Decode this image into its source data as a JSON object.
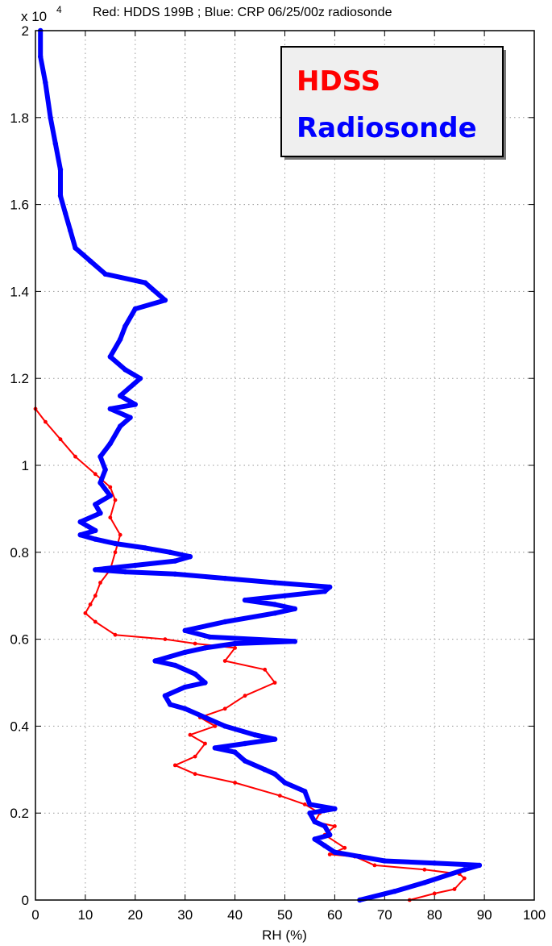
{
  "chart_data": {
    "type": "line",
    "title": "Red: HDDS 199B ; Blue: CRP 06/25/00z radiosonde",
    "xlabel": "RH (%)",
    "ylabel": "",
    "xlim": [
      0,
      100
    ],
    "ylim": [
      0,
      20000
    ],
    "y_exponent_label": "x 10",
    "y_exponent_power": "4",
    "x_ticks": [
      0,
      10,
      20,
      30,
      40,
      50,
      60,
      70,
      80,
      90,
      100
    ],
    "x_tick_labels": [
      "0",
      "10",
      "20",
      "30",
      "40",
      "50",
      "60",
      "70",
      "80",
      "90",
      "100"
    ],
    "y_ticks": [
      0,
      2000,
      4000,
      6000,
      8000,
      10000,
      12000,
      14000,
      16000,
      18000,
      20000
    ],
    "y_tick_labels": [
      "0",
      "0.2",
      "0.4",
      "0.6",
      "0.8",
      "1",
      "1.2",
      "1.4",
      "1.6",
      "1.8",
      "2"
    ],
    "grid": true,
    "legend": {
      "placement": "top-right",
      "entries": [
        "HDSS",
        "Radiosonde"
      ]
    },
    "colors": {
      "hdss": "#ff0000",
      "radiosonde": "#0000ff"
    },
    "series": [
      {
        "name": "HDSS",
        "color": "#ff0000",
        "points": [
          [
            75,
            0
          ],
          [
            80,
            150
          ],
          [
            84,
            250
          ],
          [
            86,
            500
          ],
          [
            85,
            600
          ],
          [
            78,
            700
          ],
          [
            68,
            800
          ],
          [
            64,
            1000
          ],
          [
            59,
            1050
          ],
          [
            62,
            1200
          ],
          [
            58,
            1500
          ],
          [
            60,
            1700
          ],
          [
            56,
            1800
          ],
          [
            57,
            2000
          ],
          [
            54,
            2200
          ],
          [
            49,
            2400
          ],
          [
            40,
            2700
          ],
          [
            32,
            2900
          ],
          [
            28,
            3100
          ],
          [
            32,
            3300
          ],
          [
            34,
            3600
          ],
          [
            31,
            3800
          ],
          [
            36,
            4000
          ],
          [
            33,
            4200
          ],
          [
            38,
            4400
          ],
          [
            42,
            4700
          ],
          [
            48,
            5000
          ],
          [
            46,
            5300
          ],
          [
            38,
            5500
          ],
          [
            40,
            5800
          ],
          [
            32,
            5900
          ],
          [
            26,
            6000
          ],
          [
            16,
            6100
          ],
          [
            12,
            6400
          ],
          [
            10,
            6600
          ],
          [
            11,
            6800
          ],
          [
            12,
            7000
          ],
          [
            13,
            7300
          ],
          [
            15,
            7600
          ],
          [
            16,
            8000
          ],
          [
            17,
            8400
          ],
          [
            15,
            8800
          ],
          [
            16,
            9200
          ],
          [
            15,
            9500
          ],
          [
            12,
            9800
          ],
          [
            8,
            10200
          ],
          [
            5,
            10600
          ],
          [
            2,
            11000
          ],
          [
            0,
            11300
          ]
        ]
      },
      {
        "name": "Radiosonde",
        "color": "#0000ff",
        "points": [
          [
            65,
            0
          ],
          [
            72,
            200
          ],
          [
            78,
            400
          ],
          [
            86,
            700
          ],
          [
            89,
            800
          ],
          [
            80,
            850
          ],
          [
            70,
            900
          ],
          [
            65,
            1000
          ],
          [
            60,
            1100
          ],
          [
            58,
            1250
          ],
          [
            56,
            1400
          ],
          [
            59,
            1500
          ],
          [
            58,
            1700
          ],
          [
            56,
            1800
          ],
          [
            55,
            2000
          ],
          [
            60,
            2100
          ],
          [
            55,
            2200
          ],
          [
            54,
            2500
          ],
          [
            50,
            2700
          ],
          [
            48,
            2900
          ],
          [
            46,
            3000
          ],
          [
            42,
            3200
          ],
          [
            40,
            3400
          ],
          [
            36,
            3500
          ],
          [
            42,
            3600
          ],
          [
            48,
            3700
          ],
          [
            44,
            3800
          ],
          [
            38,
            4000
          ],
          [
            34,
            4200
          ],
          [
            30,
            4400
          ],
          [
            27,
            4500
          ],
          [
            26,
            4700
          ],
          [
            30,
            4900
          ],
          [
            34,
            5000
          ],
          [
            32,
            5200
          ],
          [
            28,
            5400
          ],
          [
            24,
            5500
          ],
          [
            30,
            5700
          ],
          [
            34,
            5800
          ],
          [
            40,
            5900
          ],
          [
            52,
            5950
          ],
          [
            35,
            6050
          ],
          [
            30,
            6200
          ],
          [
            38,
            6400
          ],
          [
            48,
            6600
          ],
          [
            52,
            6700
          ],
          [
            48,
            6800
          ],
          [
            42,
            6900
          ],
          [
            50,
            7000
          ],
          [
            58,
            7100
          ],
          [
            59,
            7200
          ],
          [
            48,
            7300
          ],
          [
            38,
            7400
          ],
          [
            28,
            7500
          ],
          [
            18,
            7550
          ],
          [
            12,
            7600
          ],
          [
            20,
            7700
          ],
          [
            28,
            7800
          ],
          [
            31,
            7900
          ],
          [
            27,
            8000
          ],
          [
            22,
            8100
          ],
          [
            16,
            8200
          ],
          [
            12,
            8300
          ],
          [
            9,
            8400
          ],
          [
            12,
            8500
          ],
          [
            9,
            8700
          ],
          [
            13,
            8900
          ],
          [
            12,
            9100
          ],
          [
            15,
            9300
          ],
          [
            13,
            9600
          ],
          [
            14,
            9900
          ],
          [
            13,
            10200
          ],
          [
            15,
            10500
          ],
          [
            17,
            10900
          ],
          [
            19,
            11100
          ],
          [
            15,
            11300
          ],
          [
            20,
            11400
          ],
          [
            17,
            11600
          ],
          [
            21,
            12000
          ],
          [
            18,
            12200
          ],
          [
            15,
            12500
          ],
          [
            17,
            12900
          ],
          [
            18,
            13200
          ],
          [
            20,
            13600
          ],
          [
            26,
            13800
          ],
          [
            22,
            14200
          ],
          [
            14,
            14400
          ],
          [
            11,
            14700
          ],
          [
            8,
            15000
          ],
          [
            7,
            15400
          ],
          [
            6,
            15800
          ],
          [
            5,
            16200
          ],
          [
            5,
            16800
          ],
          [
            4,
            17400
          ],
          [
            3,
            18000
          ],
          [
            2,
            18800
          ],
          [
            1,
            19400
          ],
          [
            1,
            20000
          ]
        ]
      }
    ]
  }
}
